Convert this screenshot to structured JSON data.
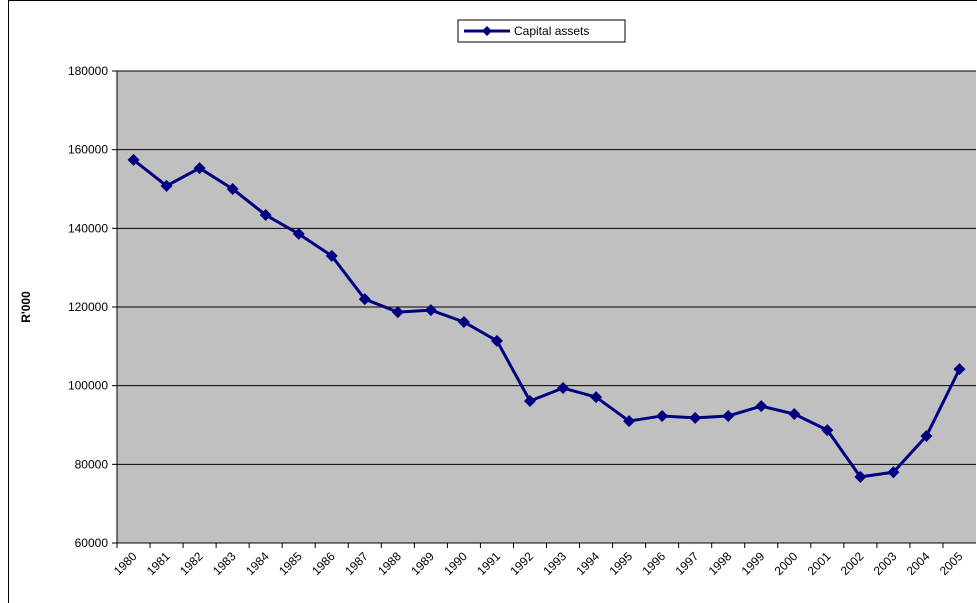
{
  "chart_data": {
    "type": "line",
    "y_label": "R'000",
    "categories": [
      "1980",
      "1981",
      "1982",
      "1983",
      "1984",
      "1985",
      "1986",
      "1987",
      "1988",
      "1989",
      "1990",
      "1991",
      "1992",
      "1993",
      "1994",
      "1995",
      "1996",
      "1997",
      "1998",
      "1999",
      "2000",
      "2001",
      "2002",
      "2003",
      "2004",
      "2005"
    ],
    "series": [
      {
        "name": "Capital assets",
        "color": "#000080",
        "values": [
          157400,
          150800,
          155300,
          150000,
          143400,
          138600,
          133000,
          122000,
          118700,
          119200,
          116200,
          111400,
          96100,
          99400,
          97100,
          91000,
          92300,
          91800,
          92300,
          94800,
          92800,
          88700,
          76800,
          78000,
          87200,
          104200
        ]
      }
    ],
    "ylim": [
      60000,
      180000
    ],
    "yticks": [
      60000,
      80000,
      100000,
      120000,
      140000,
      160000,
      180000
    ],
    "grid": true,
    "legend": "top",
    "plot_background": "#c0c0c0"
  }
}
